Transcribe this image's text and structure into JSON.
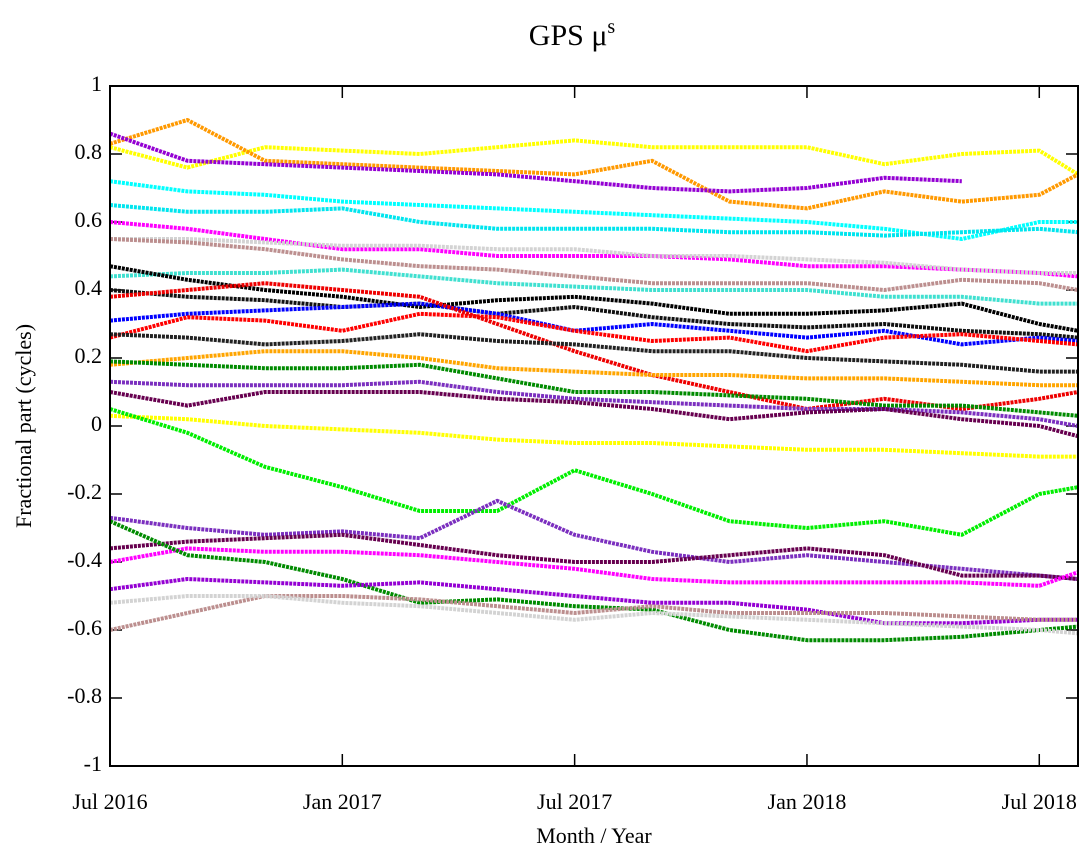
{
  "chart_data": {
    "type": "line",
    "title": "GPS μ",
    "title_superscript": "s",
    "x_label": "Month / Year",
    "y_label": "Fractional part (cycles)",
    "x": [
      "2016-07",
      "2016-09",
      "2016-11",
      "2017-01",
      "2017-03",
      "2017-05",
      "2017-07",
      "2017-09",
      "2017-11",
      "2018-01",
      "2018-03",
      "2018-05",
      "2018-07",
      "2018-08"
    ],
    "xlim": [
      "2016-07",
      "2018-08"
    ],
    "xticks": [
      {
        "value": "2016-07",
        "label": "Jul 2016"
      },
      {
        "value": "2017-01",
        "label": "Jan 2017"
      },
      {
        "value": "2017-07",
        "label": "Jul 2017"
      },
      {
        "value": "2018-01",
        "label": "Jan 2018"
      },
      {
        "value": "2018-07",
        "label": "Jul 2018"
      }
    ],
    "ylim": [
      -1,
      1
    ],
    "yticks": [
      -1,
      -0.8,
      -0.6,
      -0.4,
      -0.2,
      0,
      0.2,
      0.4,
      0.6,
      0.8,
      1
    ],
    "series": [
      {
        "color": "#ffff00",
        "values": [
          0.82,
          0.76,
          0.82,
          0.81,
          0.8,
          0.82,
          0.84,
          0.82,
          0.82,
          0.82,
          0.77,
          0.8,
          0.81,
          0.74
        ]
      },
      {
        "color": "#ff9900",
        "values": [
          0.83,
          0.9,
          0.78,
          0.77,
          0.76,
          0.75,
          0.74,
          0.78,
          0.66,
          0.64,
          0.69,
          0.66,
          0.68,
          0.74
        ]
      },
      {
        "color": "#9400d3",
        "values": [
          0.86,
          0.78,
          0.77,
          0.76,
          0.75,
          0.74,
          0.72,
          0.7,
          0.69,
          0.7,
          0.73,
          0.72,
          null,
          null
        ]
      },
      {
        "color": "#00ffff",
        "values": [
          0.72,
          0.69,
          0.68,
          0.66,
          0.65,
          0.64,
          0.63,
          0.62,
          0.61,
          0.6,
          0.58,
          0.55,
          0.6,
          0.6
        ]
      },
      {
        "color": "#00e5ee",
        "values": [
          0.65,
          0.63,
          0.63,
          0.64,
          0.6,
          0.58,
          0.58,
          0.58,
          0.57,
          0.57,
          0.56,
          0.57,
          0.58,
          0.57
        ]
      },
      {
        "color": "#ff00ff",
        "values": [
          0.6,
          0.58,
          0.55,
          0.52,
          0.52,
          0.5,
          0.5,
          0.5,
          0.49,
          0.47,
          0.47,
          0.46,
          0.45,
          0.44
        ]
      },
      {
        "color": "#d3d3d3",
        "values": [
          0.55,
          0.55,
          0.54,
          0.53,
          0.53,
          0.52,
          0.52,
          0.5,
          0.5,
          0.49,
          0.48,
          0.46,
          0.45,
          0.45
        ]
      },
      {
        "color": "#bc8f8f",
        "values": [
          0.55,
          0.54,
          0.52,
          0.49,
          0.47,
          0.46,
          0.44,
          0.42,
          0.42,
          0.42,
          0.4,
          0.43,
          0.42,
          0.4
        ]
      },
      {
        "color": "#40e0d0",
        "values": [
          0.44,
          0.45,
          0.45,
          0.46,
          0.44,
          0.42,
          0.41,
          0.4,
          0.4,
          0.4,
          0.38,
          0.38,
          0.36,
          0.36
        ]
      },
      {
        "color": "#000000",
        "values": [
          0.47,
          0.43,
          0.4,
          0.38,
          0.35,
          0.37,
          0.38,
          0.36,
          0.33,
          0.33,
          0.34,
          0.36,
          0.3,
          0.28
        ]
      },
      {
        "color": "#111111",
        "values": [
          0.4,
          0.38,
          0.37,
          0.35,
          0.36,
          0.33,
          0.35,
          0.32,
          0.3,
          0.29,
          0.3,
          0.28,
          0.27,
          0.26
        ]
      },
      {
        "color": "#0000ff",
        "values": [
          0.31,
          0.33,
          0.34,
          0.35,
          0.36,
          0.33,
          0.28,
          0.3,
          0.28,
          0.26,
          0.28,
          0.24,
          0.26,
          0.25
        ]
      },
      {
        "color": "#ff0000",
        "values": [
          0.26,
          0.32,
          0.31,
          0.28,
          0.33,
          0.32,
          0.28,
          0.25,
          0.26,
          0.22,
          0.26,
          0.27,
          0.25,
          0.24
        ]
      },
      {
        "color": "#ee0000",
        "values": [
          0.38,
          0.4,
          0.42,
          0.4,
          0.38,
          0.3,
          0.22,
          0.15,
          0.1,
          0.05,
          0.08,
          0.05,
          0.08,
          0.1
        ]
      },
      {
        "color": "#222222",
        "values": [
          0.27,
          0.26,
          0.24,
          0.25,
          0.27,
          0.25,
          0.24,
          0.22,
          0.22,
          0.2,
          0.19,
          0.18,
          0.16,
          0.16
        ]
      },
      {
        "color": "#ffa500",
        "values": [
          0.18,
          0.2,
          0.22,
          0.22,
          0.2,
          0.17,
          0.16,
          0.15,
          0.15,
          0.14,
          0.14,
          0.13,
          0.12,
          0.12
        ]
      },
      {
        "color": "#008b00",
        "values": [
          0.19,
          0.18,
          0.17,
          0.17,
          0.18,
          0.14,
          0.1,
          0.1,
          0.09,
          0.08,
          0.06,
          0.06,
          0.04,
          0.03
        ]
      },
      {
        "color": "#7b2fbf",
        "values": [
          0.13,
          0.12,
          0.12,
          0.12,
          0.13,
          0.1,
          0.08,
          0.07,
          0.06,
          0.05,
          0.05,
          0.04,
          0.02,
          0.0
        ]
      },
      {
        "color": "#67004f",
        "values": [
          0.1,
          0.06,
          0.1,
          0.1,
          0.1,
          0.08,
          0.07,
          0.05,
          0.02,
          0.04,
          0.05,
          0.02,
          0.0,
          -0.03
        ]
      },
      {
        "color": "#ffff00",
        "values": [
          0.03,
          0.02,
          0.0,
          -0.01,
          -0.02,
          -0.04,
          -0.05,
          -0.05,
          -0.06,
          -0.07,
          -0.07,
          -0.08,
          -0.09,
          -0.09
        ]
      },
      {
        "color": "#00ee00",
        "values": [
          0.05,
          -0.02,
          -0.12,
          -0.18,
          -0.25,
          -0.25,
          -0.13,
          -0.2,
          -0.28,
          -0.3,
          -0.28,
          -0.32,
          -0.2,
          -0.18
        ]
      },
      {
        "color": "#7b2fbf",
        "values": [
          -0.27,
          -0.3,
          -0.32,
          -0.31,
          -0.33,
          -0.22,
          -0.32,
          -0.37,
          -0.4,
          -0.38,
          -0.4,
          -0.42,
          -0.44,
          -0.45
        ]
      },
      {
        "color": "#67004f",
        "values": [
          -0.36,
          -0.34,
          -0.33,
          -0.32,
          -0.35,
          -0.38,
          -0.4,
          -0.4,
          -0.38,
          -0.36,
          -0.38,
          -0.44,
          -0.44,
          -0.45
        ]
      },
      {
        "color": "#ff00ff",
        "values": [
          -0.4,
          -0.36,
          -0.37,
          -0.37,
          -0.38,
          -0.4,
          -0.42,
          -0.45,
          -0.46,
          -0.46,
          -0.46,
          -0.46,
          -0.47,
          -0.43
        ]
      },
      {
        "color": "#008b00",
        "values": [
          -0.28,
          -0.38,
          -0.4,
          -0.45,
          -0.52,
          -0.51,
          -0.53,
          -0.54,
          -0.6,
          -0.63,
          -0.63,
          -0.62,
          -0.6,
          -0.59
        ]
      },
      {
        "color": "#9400d3",
        "values": [
          -0.48,
          -0.45,
          -0.46,
          -0.47,
          -0.46,
          -0.48,
          -0.5,
          -0.52,
          -0.52,
          -0.54,
          -0.58,
          -0.58,
          -0.57,
          -0.57
        ]
      },
      {
        "color": "#bc8f8f",
        "values": [
          -0.6,
          -0.55,
          -0.5,
          -0.5,
          -0.51,
          -0.53,
          -0.55,
          -0.53,
          -0.55,
          -0.55,
          -0.55,
          -0.56,
          -0.57,
          -0.57
        ]
      },
      {
        "color": "#d3d3d3",
        "values": [
          -0.52,
          -0.5,
          -0.5,
          -0.52,
          -0.53,
          -0.55,
          -0.57,
          -0.55,
          -0.56,
          -0.57,
          -0.58,
          -0.59,
          -0.6,
          -0.61
        ]
      }
    ]
  }
}
